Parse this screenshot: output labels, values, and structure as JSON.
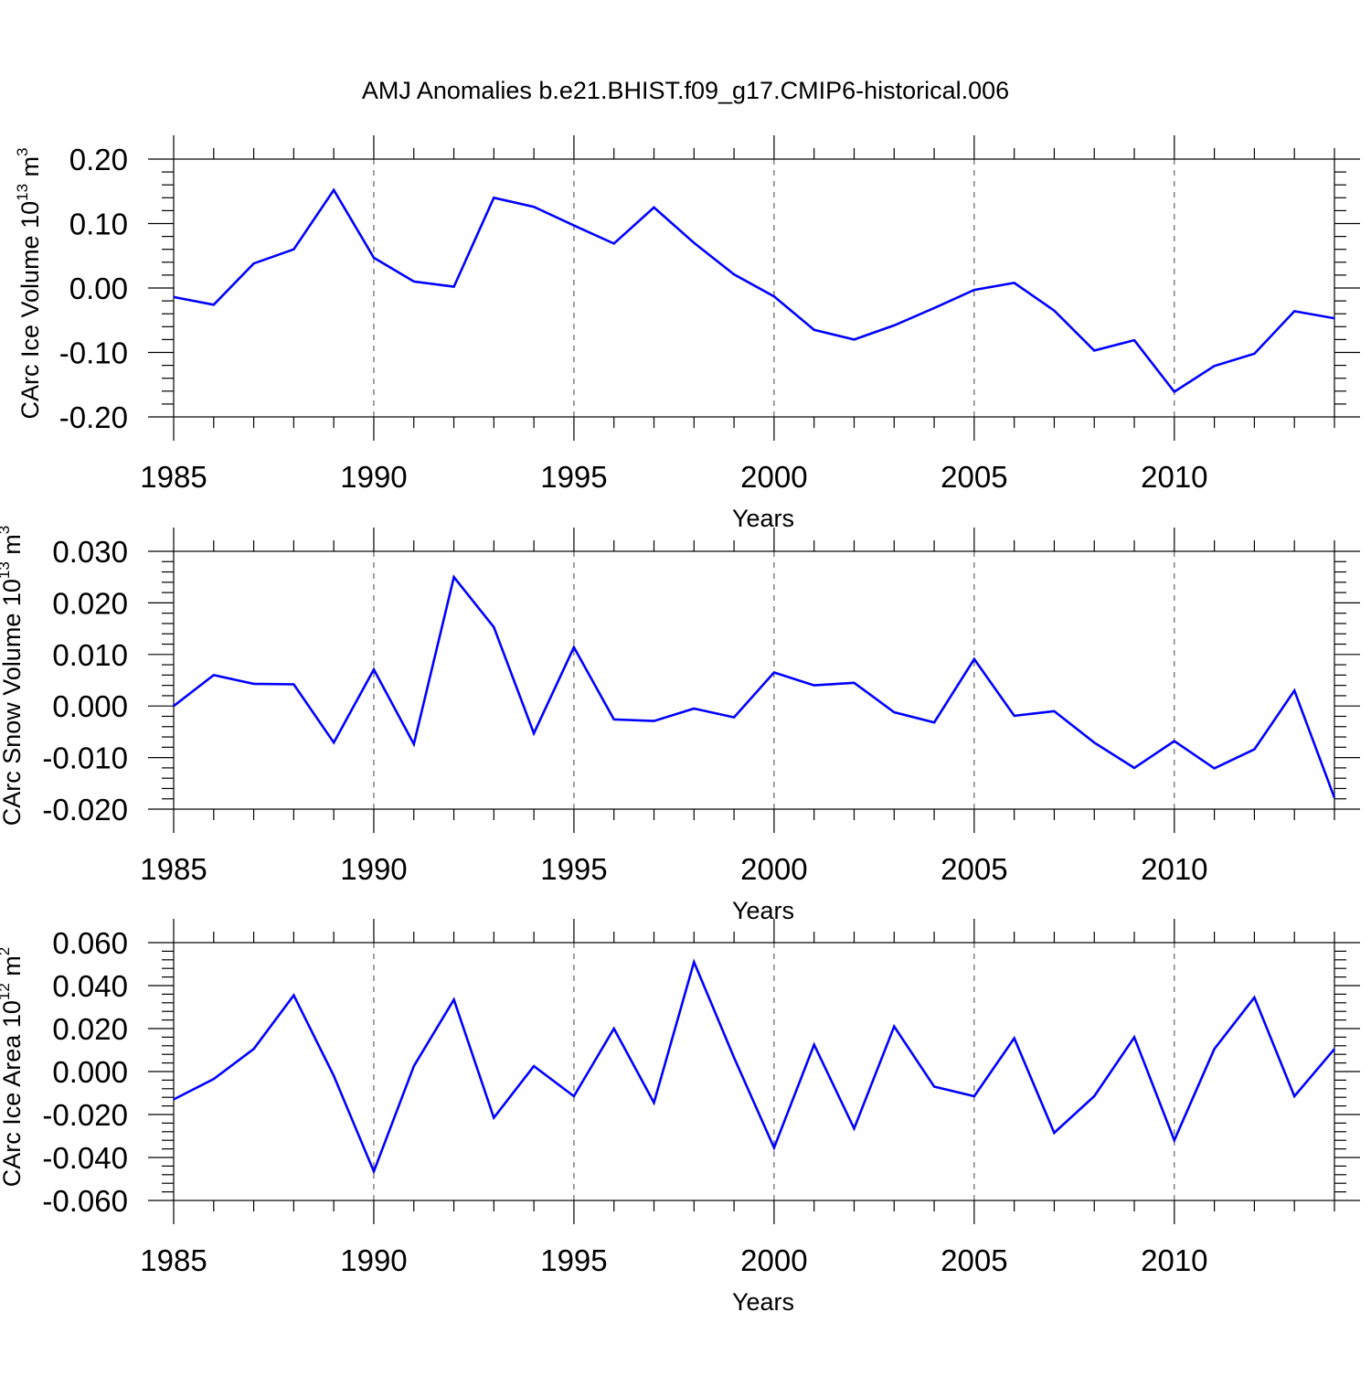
{
  "figure": {
    "title": "AMJ Anomalies b.e21.BHIST.f09_g17.CMIP6-historical.006",
    "line_color": "#0000ff"
  },
  "chart_data": [
    {
      "type": "line",
      "ylabel_main": "CArc Ice Volume 10",
      "ylabel_exp": "13",
      "ylabel_unit": " m",
      "ylabel_unit_exp": "3",
      "xlabel": "Years",
      "xlim": [
        1985,
        2014
      ],
      "ylim": [
        -0.2,
        0.2
      ],
      "x_ticks": [
        "1985",
        "1990",
        "1995",
        "2000",
        "2005",
        "2010"
      ],
      "y_ticks": [
        "0.20",
        "0.10",
        "0.00",
        "-0.10",
        "-0.20"
      ],
      "y_tick_values": [
        0.2,
        0.1,
        0.0,
        -0.1,
        -0.2
      ],
      "grid": "dashed vertical at major x ticks",
      "x": [
        1985,
        1986,
        1987,
        1988,
        1989,
        1990,
        1991,
        1992,
        1993,
        1994,
        1995,
        1996,
        1997,
        1998,
        1999,
        2000,
        2001,
        2002,
        2003,
        2004,
        2005,
        2006,
        2007,
        2008,
        2009,
        2010,
        2011,
        2012,
        2013,
        2014
      ],
      "values": [
        -0.014,
        -0.026,
        0.038,
        0.06,
        0.152,
        0.047,
        0.01,
        0.002,
        0.14,
        0.126,
        0.097,
        0.069,
        0.125,
        0.07,
        0.021,
        -0.013,
        -0.065,
        -0.08,
        -0.058,
        -0.031,
        -0.003,
        0.008,
        -0.035,
        -0.097,
        -0.081,
        -0.161,
        -0.121,
        -0.102,
        -0.036,
        -0.047
      ]
    },
    {
      "type": "line",
      "ylabel_main": "CArc Snow Volume 10",
      "ylabel_exp": "13",
      "ylabel_unit": " m",
      "ylabel_unit_exp": "3",
      "xlabel": "Years",
      "xlim": [
        1985,
        2014
      ],
      "ylim": [
        -0.02,
        0.03
      ],
      "x_ticks": [
        "1985",
        "1990",
        "1995",
        "2000",
        "2005",
        "2010"
      ],
      "y_ticks": [
        "0.030",
        "0.020",
        "0.010",
        "0.000",
        "-0.010",
        "-0.020"
      ],
      "y_tick_values": [
        0.03,
        0.02,
        0.01,
        0.0,
        -0.01,
        -0.02
      ],
      "grid": "dashed vertical at major x ticks",
      "x": [
        1985,
        1986,
        1987,
        1988,
        1989,
        1990,
        1991,
        1992,
        1993,
        1994,
        1995,
        1996,
        1997,
        1998,
        1999,
        2000,
        2001,
        2002,
        2003,
        2004,
        2005,
        2006,
        2007,
        2008,
        2009,
        2010,
        2011,
        2012,
        2013,
        2014
      ],
      "values": [
        0.0,
        0.006,
        0.0043,
        0.0042,
        -0.0071,
        0.0071,
        -0.0074,
        0.025,
        0.0153,
        -0.0053,
        0.0114,
        -0.0026,
        -0.0029,
        -0.0005,
        -0.0022,
        0.0065,
        0.004,
        0.0045,
        -0.0012,
        -0.0032,
        0.0091,
        -0.0019,
        -0.001,
        -0.0071,
        -0.012,
        -0.0068,
        -0.0121,
        -0.0084,
        0.003,
        -0.0178
      ]
    },
    {
      "type": "line",
      "ylabel_main": "CArc Ice Area 10",
      "ylabel_exp": "12",
      "ylabel_unit": " m",
      "ylabel_unit_exp": "2",
      "xlabel": "Years",
      "xlim": [
        1985,
        2014
      ],
      "ylim": [
        -0.06,
        0.06
      ],
      "x_ticks": [
        "1985",
        "1990",
        "1995",
        "2000",
        "2005",
        "2010"
      ],
      "y_ticks": [
        "0.060",
        "0.040",
        "0.020",
        "0.000",
        "-0.020",
        "-0.040",
        "-0.060"
      ],
      "y_tick_values": [
        0.06,
        0.04,
        0.02,
        0.0,
        -0.02,
        -0.04,
        -0.06
      ],
      "grid": "dashed vertical at major x ticks",
      "x": [
        1985,
        1986,
        1987,
        1988,
        1989,
        1990,
        1991,
        1992,
        1993,
        1994,
        1995,
        1996,
        1997,
        1998,
        1999,
        2000,
        2001,
        2002,
        2003,
        2004,
        2005,
        2006,
        2007,
        2008,
        2009,
        2010,
        2011,
        2012,
        2013,
        2014
      ],
      "values": [
        -0.013,
        -0.0035,
        0.0105,
        0.0355,
        -0.002,
        -0.0465,
        0.0025,
        0.0335,
        -0.0215,
        0.0025,
        -0.0115,
        0.02,
        -0.0145,
        0.051,
        0.0065,
        -0.0355,
        0.0125,
        -0.0265,
        0.021,
        -0.007,
        -0.0115,
        0.0155,
        -0.0285,
        -0.0115,
        0.016,
        -0.032,
        0.0105,
        0.0345,
        -0.0115,
        0.0105
      ]
    }
  ]
}
